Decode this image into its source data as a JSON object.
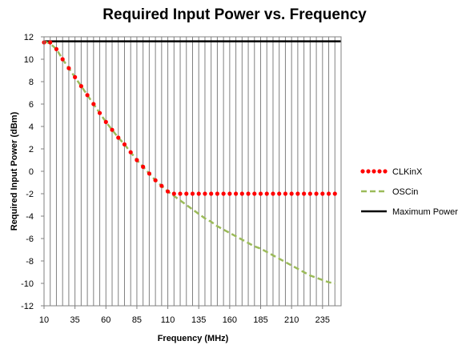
{
  "chart_data": {
    "type": "line",
    "title": "Required Input Power vs. Frequency",
    "xlabel": "Frequency (MHz)",
    "ylabel": "Required Input Power (dBm)",
    "xlim": [
      10,
      250
    ],
    "ylim": [
      -12,
      12
    ],
    "x_tick_labels": [
      "10",
      "35",
      "60",
      "85",
      "110",
      "135",
      "160",
      "185",
      "210",
      "235"
    ],
    "x_ticks": [
      10,
      35,
      60,
      85,
      110,
      135,
      160,
      185,
      210,
      235
    ],
    "y_ticks": [
      -12,
      -10,
      -8,
      -6,
      -4,
      -2,
      0,
      2,
      4,
      6,
      8,
      10,
      12
    ],
    "y_tick_labels": [
      "-12",
      "-10",
      "-8",
      "-6",
      "-4",
      "-2",
      "0",
      "2",
      "4",
      "6",
      "8",
      "10",
      "12"
    ],
    "vertical_gridlines_every": 5,
    "horizontal_gridlines": false,
    "legend_position": "right",
    "series": [
      {
        "name": "CLKinX",
        "style": "dotted",
        "color": "#ff0000",
        "x": [
          10,
          15,
          20,
          25,
          30,
          35,
          40,
          45,
          50,
          55,
          60,
          65,
          70,
          75,
          80,
          85,
          90,
          95,
          100,
          105,
          110,
          115,
          120,
          125,
          130,
          135,
          140,
          145,
          150,
          155,
          160,
          165,
          170,
          175,
          180,
          185,
          190,
          195,
          200,
          205,
          210,
          215,
          220,
          225,
          230,
          235,
          240,
          245
        ],
        "y": [
          11.5,
          11.5,
          10.9,
          10.0,
          9.2,
          8.4,
          7.6,
          6.8,
          6.0,
          5.2,
          4.4,
          3.7,
          3.0,
          2.4,
          1.7,
          1.0,
          0.4,
          -0.2,
          -0.8,
          -1.3,
          -1.8,
          -2.0,
          -2.0,
          -2.0,
          -2.0,
          -2.0,
          -2.0,
          -2.0,
          -2.0,
          -2.0,
          -2.0,
          -2.0,
          -2.0,
          -2.0,
          -2.0,
          -2.0,
          -2.0,
          -2.0,
          -2.0,
          -2.0,
          -2.0,
          -2.0,
          -2.0,
          -2.0,
          -2.0,
          -2.0,
          -2.0,
          -2.0
        ]
      },
      {
        "name": "OSCin",
        "style": "dashed",
        "color": "#9bbb59",
        "x": [
          10,
          15,
          20,
          25,
          30,
          35,
          40,
          45,
          50,
          55,
          60,
          65,
          70,
          75,
          80,
          85,
          90,
          95,
          100,
          105,
          110,
          115,
          120,
          125,
          130,
          135,
          140,
          145,
          150,
          155,
          160,
          165,
          170,
          175,
          180,
          185,
          190,
          195,
          200,
          205,
          210,
          215,
          220,
          225,
          230,
          235,
          240,
          245
        ],
        "y": [
          11.6,
          11.4,
          10.9,
          10.0,
          9.2,
          8.4,
          7.6,
          6.8,
          6.0,
          5.2,
          4.4,
          3.7,
          3.0,
          2.4,
          1.7,
          1.0,
          0.4,
          -0.2,
          -0.8,
          -1.3,
          -1.8,
          -2.2,
          -2.6,
          -3.0,
          -3.4,
          -3.8,
          -4.2,
          -4.5,
          -4.9,
          -5.2,
          -5.5,
          -5.8,
          -6.1,
          -6.4,
          -6.7,
          -6.9,
          -7.2,
          -7.5,
          -7.8,
          -8.1,
          -8.4,
          -8.7,
          -9.0,
          -9.3,
          -9.5,
          -9.7,
          -9.9,
          -10.0
        ]
      },
      {
        "name": "Maximum Power",
        "style": "solid",
        "color": "#000000",
        "x": [
          10,
          250
        ],
        "y": [
          11.6,
          11.6
        ]
      }
    ]
  }
}
